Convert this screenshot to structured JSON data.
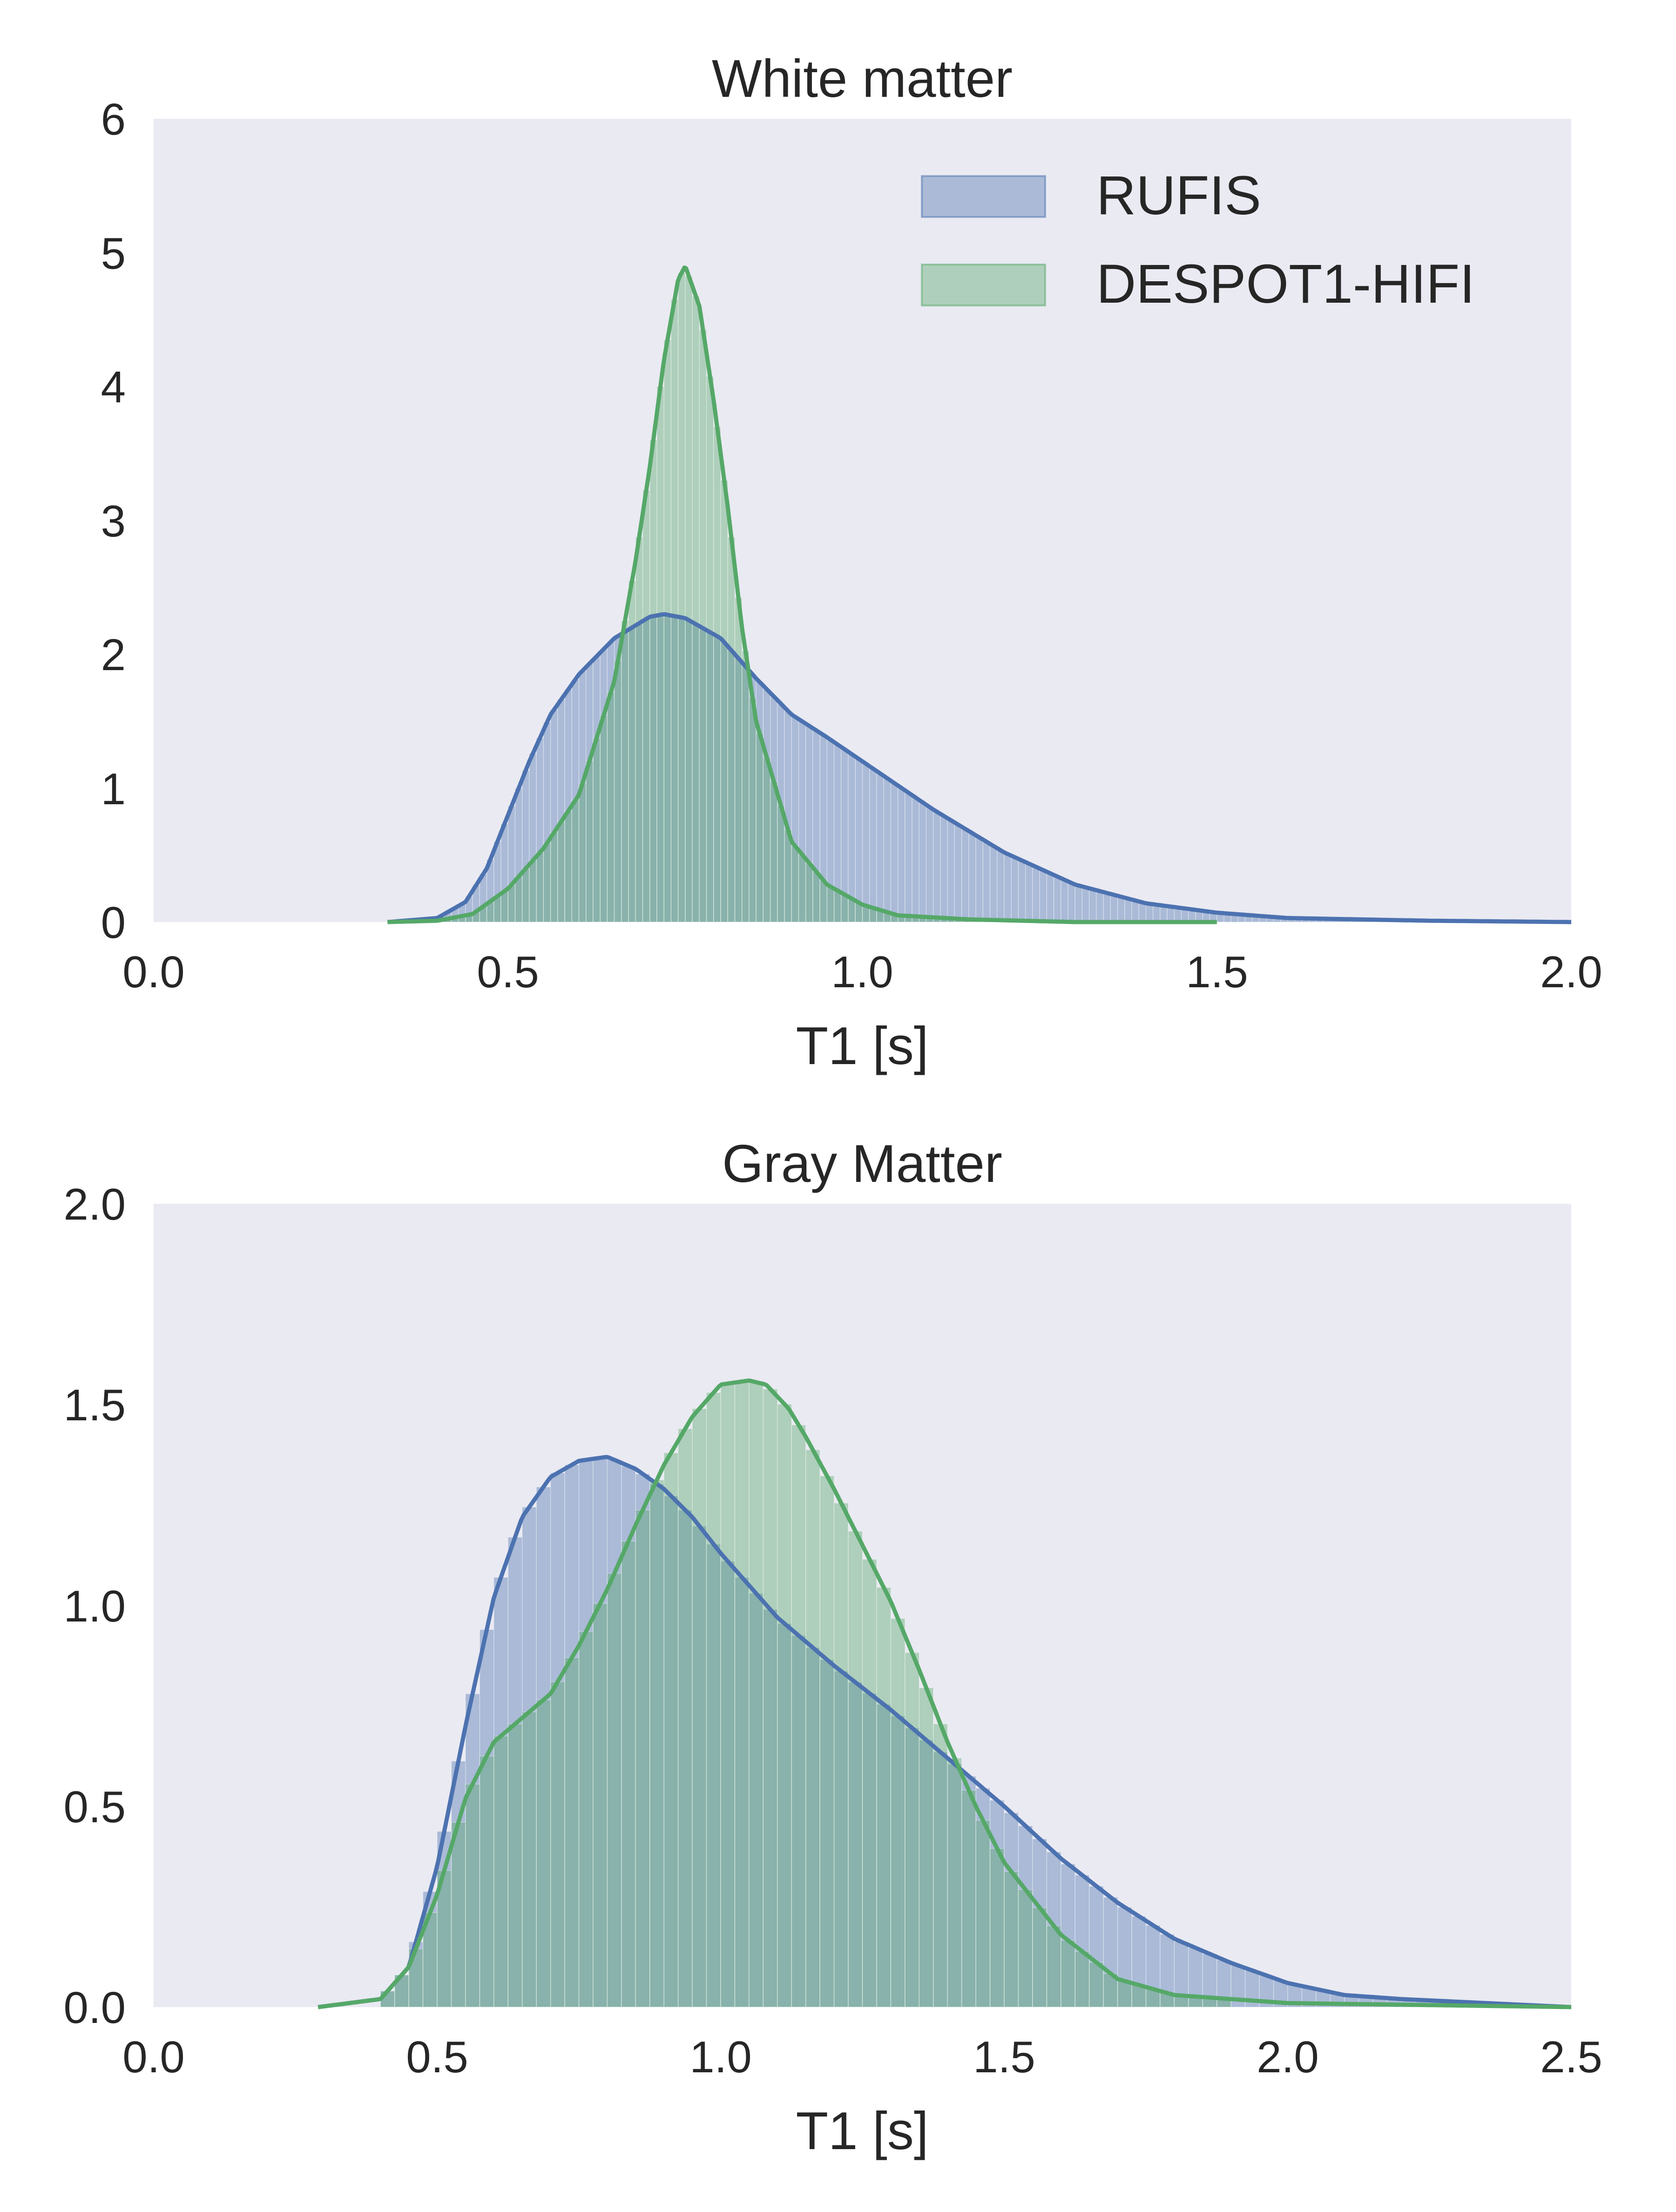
{
  "colors": {
    "background": "#eaeaf2",
    "series1": "#4c72b0",
    "series2": "#55a868",
    "text": "#262626"
  },
  "chart_data": [
    {
      "type": "histogram",
      "title": "White matter",
      "xlabel": "T1 [s]",
      "ylabel": "",
      "xlim": [
        0.0,
        2.0
      ],
      "ylim": [
        0,
        6
      ],
      "xticks": [
        "0.0",
        "0.5",
        "1.0",
        "1.5",
        "2.0"
      ],
      "yticks": [
        "0",
        "1",
        "2",
        "3",
        "4",
        "5",
        "6"
      ],
      "grid": false,
      "legend": {
        "position": "top-right",
        "entries": [
          "RUFIS",
          "DESPOT1-HIFI"
        ]
      },
      "series": [
        {
          "name": "RUFIS",
          "color": "#4c72b0",
          "kde": {
            "x": [
              0.33,
              0.4,
              0.44,
              0.47,
              0.5,
              0.53,
              0.56,
              0.6,
              0.65,
              0.7,
              0.72,
              0.75,
              0.8,
              0.85,
              0.9,
              0.95,
              1.0,
              1.05,
              1.1,
              1.2,
              1.3,
              1.4,
              1.5,
              1.6,
              1.8,
              2.0
            ],
            "y": [
              0.0,
              0.03,
              0.15,
              0.4,
              0.8,
              1.2,
              1.55,
              1.85,
              2.12,
              2.28,
              2.3,
              2.27,
              2.12,
              1.82,
              1.55,
              1.38,
              1.2,
              1.02,
              0.84,
              0.52,
              0.28,
              0.14,
              0.07,
              0.03,
              0.01,
              0.0
            ]
          },
          "hist": {
            "start": 0.4,
            "end": 2.0,
            "width": 0.01
          }
        },
        {
          "name": "DESPOT1-HIFI",
          "color": "#55a868",
          "kde": {
            "x": [
              0.33,
              0.4,
              0.45,
              0.5,
              0.55,
              0.6,
              0.65,
              0.68,
              0.7,
              0.72,
              0.74,
              0.75,
              0.77,
              0.79,
              0.81,
              0.83,
              0.85,
              0.9,
              0.95,
              1.0,
              1.05,
              1.15,
              1.3,
              1.5
            ],
            "y": [
              0.0,
              0.01,
              0.06,
              0.25,
              0.55,
              0.95,
              1.8,
              2.7,
              3.4,
              4.2,
              4.8,
              4.9,
              4.6,
              3.9,
              3.1,
              2.2,
              1.5,
              0.6,
              0.28,
              0.13,
              0.05,
              0.02,
              0.0,
              0.0
            ]
          },
          "hist": {
            "start": 0.4,
            "end": 1.2,
            "width": 0.01
          }
        }
      ]
    },
    {
      "type": "histogram",
      "title": "Gray Matter",
      "xlabel": "T1 [s]",
      "ylabel": "",
      "xlim": [
        0.0,
        2.5
      ],
      "ylim": [
        0.0,
        2.0
      ],
      "xticks": [
        "0.0",
        "0.5",
        "1.0",
        "1.5",
        "2.0",
        "2.5"
      ],
      "yticks": [
        "0.0",
        "0.5",
        "1.0",
        "1.5",
        "2.0"
      ],
      "grid": false,
      "legend": null,
      "series": [
        {
          "name": "RUFIS",
          "color": "#4c72b0",
          "kde": {
            "x": [
              0.29,
              0.4,
              0.45,
              0.5,
              0.55,
              0.6,
              0.65,
              0.7,
              0.75,
              0.8,
              0.85,
              0.9,
              0.95,
              1.0,
              1.05,
              1.1,
              1.2,
              1.3,
              1.4,
              1.5,
              1.6,
              1.7,
              1.8,
              1.9,
              2.0,
              2.1,
              2.2,
              2.35,
              2.5
            ],
            "y": [
              0.0,
              0.02,
              0.1,
              0.35,
              0.7,
              1.02,
              1.22,
              1.32,
              1.36,
              1.37,
              1.34,
              1.29,
              1.22,
              1.13,
              1.05,
              0.97,
              0.85,
              0.74,
              0.62,
              0.5,
              0.37,
              0.26,
              0.17,
              0.11,
              0.06,
              0.03,
              0.02,
              0.01,
              0.0
            ]
          },
          "hist": {
            "start": 0.4,
            "end": 2.5,
            "width": 0.025
          }
        },
        {
          "name": "DESPOT1-HIFI",
          "color": "#55a868",
          "kde": {
            "x": [
              0.29,
              0.4,
              0.45,
              0.5,
              0.55,
              0.6,
              0.65,
              0.7,
              0.75,
              0.8,
              0.85,
              0.9,
              0.95,
              1.0,
              1.05,
              1.08,
              1.12,
              1.15,
              1.2,
              1.25,
              1.3,
              1.35,
              1.4,
              1.45,
              1.5,
              1.6,
              1.7,
              1.8,
              2.0,
              2.5
            ],
            "y": [
              0.0,
              0.02,
              0.1,
              0.28,
              0.52,
              0.66,
              0.72,
              0.78,
              0.9,
              1.04,
              1.2,
              1.35,
              1.47,
              1.55,
              1.56,
              1.55,
              1.49,
              1.42,
              1.29,
              1.15,
              1.01,
              0.84,
              0.66,
              0.5,
              0.36,
              0.18,
              0.07,
              0.03,
              0.01,
              0.0
            ]
          },
          "hist": {
            "start": 0.4,
            "end": 1.9,
            "width": 0.025
          }
        }
      ]
    }
  ]
}
